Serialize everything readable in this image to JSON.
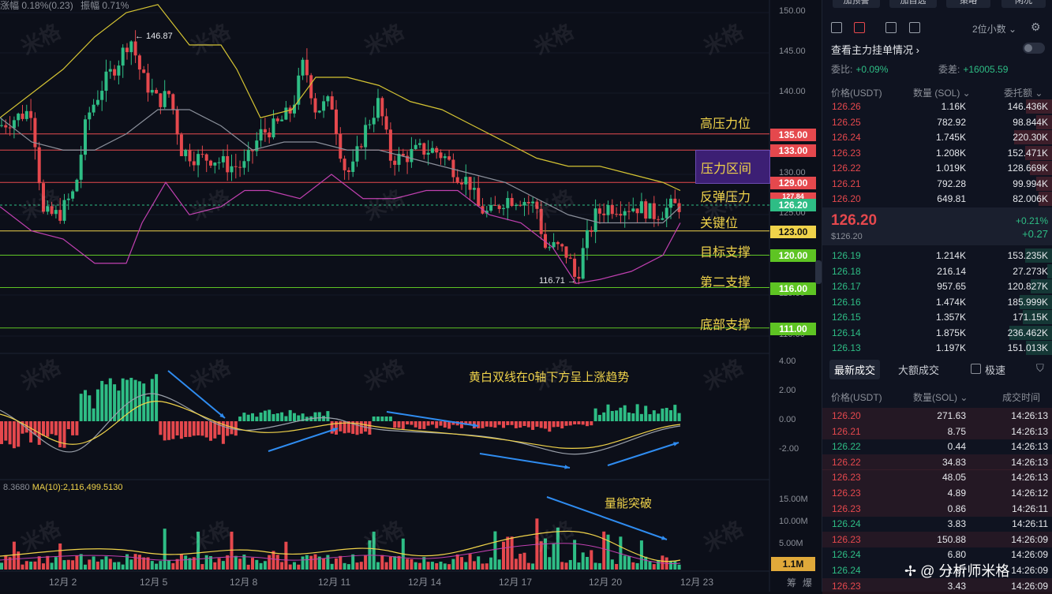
{
  "top_info": {
    "change_label": "涨幅 0.18%(0.23)",
    "amplitude_label": "振幅 0.71%"
  },
  "y_axis": {
    "ticks": [
      "150.00",
      "145.00",
      "140.00",
      "135.00",
      "130.00",
      "125.00",
      "120.00",
      "115.00",
      "110.00"
    ]
  },
  "macd_axis": {
    "ticks": [
      "4.00",
      "2.00",
      "0.00",
      "-2.00"
    ]
  },
  "vol_axis": {
    "ticks": [
      "15.00M",
      "10.00M",
      "5.00M"
    ]
  },
  "x_axis": {
    "labels": [
      "12月 2",
      "12月 5",
      "12月 8",
      "12月 11",
      "12月 14",
      "12月 17",
      "12月 20",
      "12月 23"
    ]
  },
  "levels": [
    {
      "label": "高压力位",
      "price": "135.00",
      "color": "#e5484d"
    },
    {
      "label": "",
      "price": "133.00",
      "color": "#e5484d"
    },
    {
      "label": "压力区间",
      "price": "",
      "color": "#3c1f74"
    },
    {
      "label": "",
      "price": "129.00",
      "color": "#e5484d"
    },
    {
      "label": "反弹压力",
      "price": "127.84",
      "color": "#e5484d"
    },
    {
      "label": "",
      "price": "126.20",
      "color": "#2ebd85"
    },
    {
      "label": "关键位",
      "price": "123.00",
      "color": "#f0d34a"
    },
    {
      "label": "目标支撑",
      "price": "120.00",
      "color": "#5ec423"
    },
    {
      "label": "第二支撑",
      "price": "116.00",
      "color": "#5ec423"
    },
    {
      "label": "底部支撑",
      "price": "111.00",
      "color": "#5ec423"
    }
  ],
  "extremes": {
    "high": "← 146.87",
    "low": "116.71 →"
  },
  "annotations": {
    "macd": "黄白双线在0轴下方呈上涨趋势",
    "volume": "量能突破"
  },
  "volume_indicator": {
    "left_value": "8.3680",
    "ma_label": "MA(10):2,116,499.5130",
    "current": "1.1M"
  },
  "chart_footer": {
    "chip_a": "筹",
    "chip_b": "爆"
  },
  "watermark": "米格",
  "panel": {
    "buttons": [
      "加预警",
      "加自选",
      "策略",
      "闲况"
    ],
    "decimal": "2位小数 ⌄",
    "main_force": "查看主力挂单情况 ›",
    "wei_bi_label": "委比:",
    "wei_bi": "+0.09%",
    "wei_cha_label": "委差:",
    "wei_cha": "+16005.59",
    "book_headers": [
      "价格(USDT)",
      "数量 (SOL) ⌄",
      "委托额 ⌄"
    ],
    "asks": [
      {
        "p": "126.26",
        "q": "1.16K",
        "t": "146.436K",
        "w": 0.48
      },
      {
        "p": "126.25",
        "q": "782.92",
        "t": "98.844K",
        "w": 0.3
      },
      {
        "p": "126.24",
        "q": "1.745K",
        "t": "220.30K",
        "w": 0.7
      },
      {
        "p": "126.23",
        "q": "1.208K",
        "t": "152.471K",
        "w": 0.5
      },
      {
        "p": "126.22",
        "q": "1.019K",
        "t": "128.669K",
        "w": 0.42
      },
      {
        "p": "126.21",
        "q": "792.28",
        "t": "99.994K",
        "w": 0.3
      },
      {
        "p": "126.20",
        "q": "649.81",
        "t": "82.006K",
        "w": 0.26
      }
    ],
    "last_price": "126.20",
    "last_price_usd": "$126.20",
    "last_pct": "+0.21%",
    "last_change": "+0.27",
    "bids": [
      {
        "p": "126.19",
        "q": "1.214K",
        "t": "153.235K",
        "w": 0.5
      },
      {
        "p": "126.18",
        "q": "216.14",
        "t": "27.273K",
        "w": 0.1
      },
      {
        "p": "126.17",
        "q": "957.65",
        "t": "120.827K",
        "w": 0.4
      },
      {
        "p": "126.16",
        "q": "1.474K",
        "t": "185.999K",
        "w": 0.6
      },
      {
        "p": "126.15",
        "q": "1.357K",
        "t": "171.15K",
        "w": 0.55
      },
      {
        "p": "126.14",
        "q": "1.875K",
        "t": "236.462K",
        "w": 0.78
      },
      {
        "p": "126.13",
        "q": "1.197K",
        "t": "151.013K",
        "w": 0.48
      }
    ],
    "trade_tabs": [
      "最新成交",
      "大额成交",
      "极速"
    ],
    "trade_headers": [
      "价格(USDT)",
      "数量(SOL) ⌄",
      "成交时间"
    ],
    "trades": [
      {
        "p": "126.20",
        "q": "271.63",
        "t": "14:26:13",
        "side": "sell"
      },
      {
        "p": "126.21",
        "q": "8.75",
        "t": "14:26:13",
        "side": "sell"
      },
      {
        "p": "126.22",
        "q": "0.44",
        "t": "14:26:13",
        "side": "buy"
      },
      {
        "p": "126.22",
        "q": "34.83",
        "t": "14:26:13",
        "side": "sell"
      },
      {
        "p": "126.23",
        "q": "48.05",
        "t": "14:26:13",
        "side": "sell"
      },
      {
        "p": "126.23",
        "q": "4.89",
        "t": "14:26:12",
        "side": "sell"
      },
      {
        "p": "126.23",
        "q": "0.86",
        "t": "14:26:11",
        "side": "sell"
      },
      {
        "p": "126.24",
        "q": "3.83",
        "t": "14:26:11",
        "side": "buy"
      },
      {
        "p": "126.23",
        "q": "150.88",
        "t": "14:26:09",
        "side": "sell"
      },
      {
        "p": "126.24",
        "q": "6.80",
        "t": "14:26:09",
        "side": "buy"
      },
      {
        "p": "126.24",
        "q": "1.67",
        "t": "14:26:09",
        "side": "buy"
      },
      {
        "p": "126.23",
        "q": "3.43",
        "t": "14:26:09",
        "side": "sell"
      }
    ],
    "brand": "✢ @ 分析师米格"
  },
  "colors": {
    "up": "#2ebd85",
    "down": "#e5484d",
    "yellow": "#f0d34a",
    "green_line": "#5ec423"
  }
}
